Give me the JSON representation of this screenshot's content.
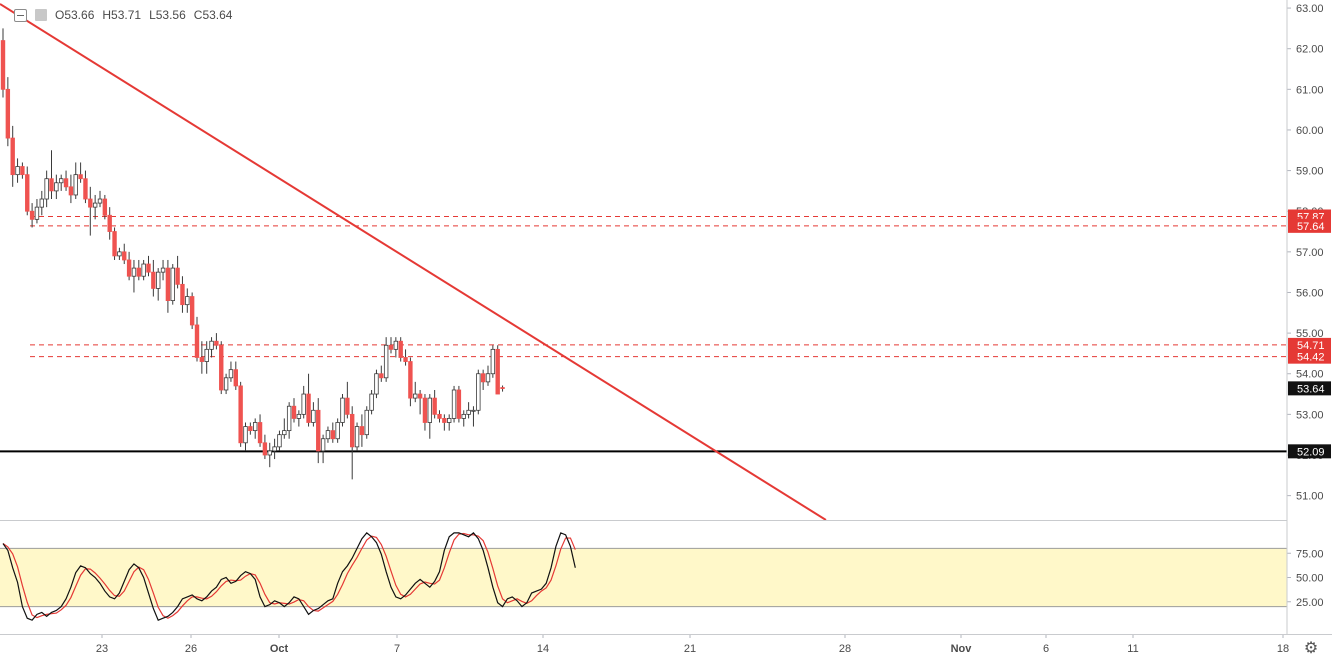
{
  "ohlc": {
    "open": "O53.66",
    "high": "H53.71",
    "low": "L53.56",
    "close": "C53.64"
  },
  "icons": {
    "collapse": "collapse-toggle-icon",
    "symbol": "symbol-icon",
    "settings": "gear-icon"
  },
  "colors": {
    "up": "#ffffff",
    "down": "#ef5350",
    "wick": "#3a3a3a",
    "trendline": "#e53935",
    "support": "#000000",
    "resistance": "#e53935",
    "stoch_k": "#111111",
    "stoch_d": "#e53935",
    "stoch_band": "#fff8c9"
  },
  "price_scale": {
    "ticks": [
      "63.00",
      "62.00",
      "61.00",
      "60.00",
      "59.00",
      "58.00",
      "57.00",
      "56.00",
      "55.00",
      "54.00",
      "53.00",
      "52.00",
      "51.00"
    ]
  },
  "price_labels": {
    "upper_a": "57.87",
    "upper_b": "57.64",
    "mid_a": "54.71",
    "mid_b": "54.42",
    "last": "53.64",
    "support": "52.09"
  },
  "time_scale": {
    "labels": [
      "23",
      "26",
      "Oct",
      "7",
      "14",
      "21",
      "28",
      "Nov",
      "6",
      "11",
      "18"
    ]
  },
  "stoch_scale": {
    "ticks": [
      "75.00",
      "50.00",
      "25.00"
    ]
  },
  "chart_data": {
    "type": "candlestick",
    "title": "",
    "last_price": 53.64,
    "ylim": [
      50.4,
      63.1
    ],
    "candles_ohlc": [
      [
        62.2,
        62.5,
        60.8,
        61.0
      ],
      [
        61.0,
        61.3,
        59.6,
        59.8
      ],
      [
        59.8,
        60.1,
        58.6,
        58.9
      ],
      [
        58.9,
        59.3,
        58.7,
        59.1
      ],
      [
        59.1,
        59.2,
        58.8,
        58.9
      ],
      [
        58.9,
        59.1,
        57.9,
        58.0
      ],
      [
        58.0,
        58.2,
        57.6,
        57.8
      ],
      [
        57.8,
        58.3,
        57.7,
        58.1
      ],
      [
        58.1,
        58.5,
        57.9,
        58.3
      ],
      [
        58.3,
        59.0,
        58.1,
        58.8
      ],
      [
        58.8,
        59.5,
        58.3,
        58.5
      ],
      [
        58.5,
        58.9,
        58.3,
        58.7
      ],
      [
        58.7,
        58.9,
        58.5,
        58.8
      ],
      [
        58.8,
        59.0,
        58.5,
        58.6
      ],
      [
        58.6,
        58.9,
        58.2,
        58.4
      ],
      [
        58.4,
        59.2,
        58.3,
        58.9
      ],
      [
        58.9,
        59.2,
        58.7,
        58.8
      ],
      [
        58.8,
        59.0,
        58.2,
        58.3
      ],
      [
        58.3,
        58.6,
        57.4,
        58.1
      ],
      [
        58.1,
        58.4,
        57.8,
        58.2
      ],
      [
        58.2,
        58.5,
        58.1,
        58.3
      ],
      [
        58.3,
        58.4,
        57.8,
        57.9
      ],
      [
        57.9,
        58.1,
        57.3,
        57.5
      ],
      [
        57.5,
        57.6,
        56.8,
        56.9
      ],
      [
        56.9,
        57.1,
        56.8,
        57.0
      ],
      [
        57.0,
        57.2,
        56.7,
        56.8
      ],
      [
        56.8,
        57.0,
        56.3,
        56.4
      ],
      [
        56.4,
        56.8,
        56.0,
        56.6
      ],
      [
        56.6,
        56.8,
        56.3,
        56.4
      ],
      [
        56.4,
        56.8,
        56.3,
        56.7
      ],
      [
        56.7,
        56.9,
        56.4,
        56.5
      ],
      [
        56.5,
        56.8,
        55.9,
        56.1
      ],
      [
        56.1,
        56.6,
        55.8,
        56.5
      ],
      [
        56.5,
        56.8,
        56.3,
        56.6
      ],
      [
        56.6,
        56.8,
        55.5,
        55.8
      ],
      [
        55.8,
        56.7,
        55.7,
        56.6
      ],
      [
        56.6,
        56.9,
        56.1,
        56.2
      ],
      [
        56.2,
        56.4,
        55.5,
        55.7
      ],
      [
        55.7,
        56.1,
        55.5,
        55.9
      ],
      [
        55.9,
        56.0,
        55.1,
        55.2
      ],
      [
        55.2,
        55.4,
        54.3,
        54.4
      ],
      [
        54.4,
        54.8,
        54.0,
        54.3
      ],
      [
        54.3,
        54.8,
        54.0,
        54.6
      ],
      [
        54.6,
        54.9,
        54.4,
        54.8
      ],
      [
        54.8,
        55.0,
        54.6,
        54.7
      ],
      [
        54.7,
        54.8,
        53.5,
        53.6
      ],
      [
        53.6,
        54.0,
        53.5,
        53.9
      ],
      [
        53.9,
        54.3,
        53.8,
        54.1
      ],
      [
        54.1,
        54.3,
        53.6,
        53.7
      ],
      [
        53.7,
        53.8,
        52.2,
        52.3
      ],
      [
        52.3,
        52.8,
        52.1,
        52.7
      ],
      [
        52.7,
        52.8,
        52.5,
        52.6
      ],
      [
        52.6,
        52.9,
        52.4,
        52.8
      ],
      [
        52.8,
        53.0,
        52.2,
        52.3
      ],
      [
        52.3,
        52.5,
        51.9,
        52.0
      ],
      [
        52.0,
        52.3,
        51.7,
        52.1
      ],
      [
        52.1,
        52.4,
        51.9,
        52.2
      ],
      [
        52.2,
        52.6,
        52.1,
        52.5
      ],
      [
        52.5,
        52.9,
        52.4,
        52.6
      ],
      [
        52.6,
        53.3,
        52.4,
        53.2
      ],
      [
        53.2,
        53.4,
        52.8,
        52.9
      ],
      [
        52.9,
        53.1,
        52.7,
        53.0
      ],
      [
        53.0,
        53.7,
        52.9,
        53.5
      ],
      [
        53.5,
        54.0,
        52.7,
        52.8
      ],
      [
        52.8,
        53.3,
        52.7,
        53.1
      ],
      [
        53.1,
        53.4,
        51.8,
        52.1
      ],
      [
        52.1,
        52.5,
        51.8,
        52.4
      ],
      [
        52.4,
        52.7,
        52.3,
        52.6
      ],
      [
        52.6,
        52.8,
        52.3,
        52.4
      ],
      [
        52.4,
        52.9,
        52.3,
        52.8
      ],
      [
        52.8,
        53.5,
        52.7,
        53.4
      ],
      [
        53.4,
        53.8,
        52.9,
        53.0
      ],
      [
        53.0,
        53.2,
        51.4,
        52.2
      ],
      [
        52.2,
        52.8,
        52.1,
        52.7
      ],
      [
        52.7,
        53.0,
        52.2,
        52.5
      ],
      [
        52.5,
        53.2,
        52.4,
        53.1
      ],
      [
        53.1,
        53.6,
        53.0,
        53.5
      ],
      [
        53.5,
        54.1,
        53.4,
        54.0
      ],
      [
        54.0,
        54.2,
        53.8,
        53.9
      ],
      [
        53.9,
        54.9,
        53.8,
        54.7
      ],
      [
        54.7,
        54.9,
        54.5,
        54.6
      ],
      [
        54.6,
        54.9,
        54.4,
        54.8
      ],
      [
        54.8,
        54.9,
        54.3,
        54.4
      ],
      [
        54.4,
        54.6,
        54.2,
        54.3
      ],
      [
        54.3,
        54.4,
        53.2,
        53.4
      ],
      [
        53.4,
        53.8,
        53.3,
        53.5
      ],
      [
        53.5,
        53.6,
        53.0,
        53.4
      ],
      [
        53.4,
        53.5,
        52.6,
        52.8
      ],
      [
        52.8,
        53.5,
        52.4,
        53.4
      ],
      [
        53.4,
        53.6,
        52.9,
        53.0
      ],
      [
        53.0,
        53.1,
        52.8,
        52.9
      ],
      [
        52.9,
        53.0,
        52.6,
        52.8
      ],
      [
        52.8,
        53.0,
        52.6,
        52.9
      ],
      [
        52.9,
        53.7,
        52.8,
        53.6
      ],
      [
        53.6,
        53.7,
        52.8,
        52.9
      ],
      [
        52.9,
        53.1,
        52.7,
        53.0
      ],
      [
        53.0,
        53.3,
        52.9,
        53.1
      ],
      [
        53.1,
        53.2,
        52.7,
        53.1
      ],
      [
        53.1,
        54.1,
        53.0,
        54.0
      ],
      [
        54.0,
        54.1,
        53.6,
        53.8
      ],
      [
        53.8,
        54.2,
        53.7,
        54.0
      ],
      [
        54.0,
        54.7,
        53.9,
        54.6
      ],
      [
        54.6,
        54.7,
        53.5,
        53.5
      ],
      [
        53.66,
        53.71,
        53.56,
        53.64
      ]
    ],
    "trendline": {
      "from": [
        0,
        63.1
      ],
      "to": [
        147,
        50.4
      ]
    },
    "support_level": 52.09,
    "resistance_levels": [
      57.87,
      57.64,
      54.71,
      54.42
    ],
    "stochastic": {
      "ylim": [
        0,
        100
      ],
      "overbought": 80,
      "oversold": 20,
      "k": [
        85,
        78,
        60,
        45,
        20,
        8,
        6,
        12,
        14,
        10,
        14,
        16,
        20,
        28,
        40,
        55,
        62,
        60,
        54,
        50,
        44,
        36,
        30,
        28,
        34,
        46,
        58,
        64,
        60,
        50,
        34,
        18,
        6,
        8,
        10,
        14,
        20,
        28,
        30,
        32,
        28,
        26,
        30,
        36,
        40,
        48,
        50,
        44,
        46,
        52,
        56,
        54,
        48,
        30,
        20,
        22,
        26,
        24,
        20,
        24,
        30,
        28,
        20,
        12,
        16,
        18,
        22,
        26,
        28,
        44,
        56,
        62,
        70,
        80,
        90,
        96,
        92,
        86,
        74,
        56,
        40,
        30,
        28,
        32,
        38,
        44,
        48,
        44,
        40,
        46,
        56,
        78,
        92,
        96,
        96,
        94,
        92,
        96,
        90,
        78,
        60,
        40,
        24,
        20,
        28,
        30,
        26,
        20,
        24,
        34,
        36,
        38,
        44,
        60,
        82,
        96,
        94,
        82,
        60
      ]
    },
    "time_axis": {
      "labels": [
        "23",
        "26",
        "Oct",
        "7",
        "14",
        "21",
        "28",
        "Nov",
        "6",
        "11",
        "18"
      ]
    }
  }
}
